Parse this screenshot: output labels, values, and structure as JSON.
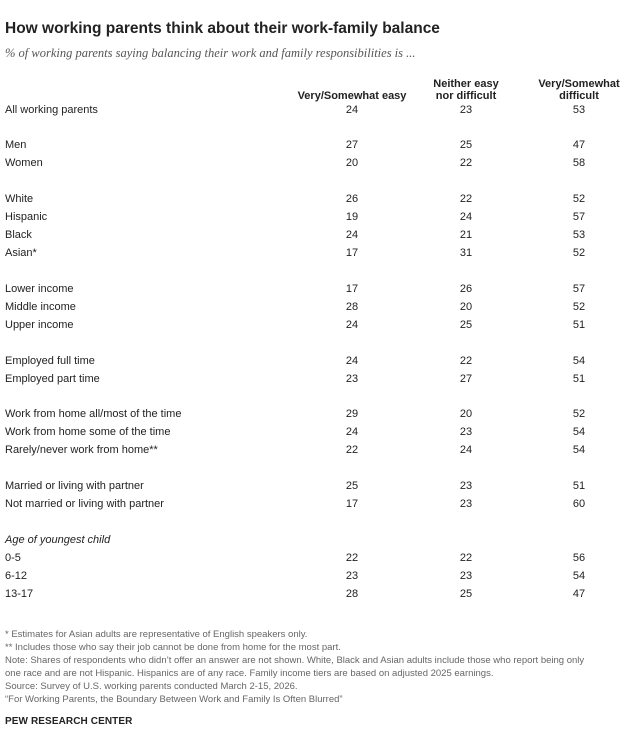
{
  "title": "How working parents think about their work-family balance",
  "subtitle": "% of working parents saying balancing their work and family responsibilities is ...",
  "chart_data": {
    "type": "table",
    "columns": [
      "Very/Somewhat easy",
      "Neither easy nor difficult",
      "Very/Somewhat difficult"
    ],
    "column_lines": [
      [
        "Very/Somewhat easy"
      ],
      [
        "Neither easy",
        "nor difficult"
      ],
      [
        "Very/Somewhat",
        "difficult"
      ]
    ],
    "rows": [
      {
        "label": "All working parents",
        "values": [
          24,
          23,
          53
        ]
      },
      {
        "label": "Men",
        "values": [
          27,
          25,
          47
        ]
      },
      {
        "label": "Women",
        "values": [
          20,
          22,
          58
        ]
      },
      {
        "label": "White",
        "values": [
          26,
          22,
          52
        ]
      },
      {
        "label": "Hispanic",
        "values": [
          19,
          24,
          57
        ]
      },
      {
        "label": "Black",
        "values": [
          24,
          21,
          53
        ]
      },
      {
        "label": "Asian*",
        "values": [
          17,
          31,
          52
        ]
      },
      {
        "label": "Lower income",
        "values": [
          17,
          26,
          57
        ]
      },
      {
        "label": "Middle income",
        "values": [
          28,
          20,
          52
        ]
      },
      {
        "label": "Upper income",
        "values": [
          24,
          25,
          51
        ]
      },
      {
        "label": "Employed full time",
        "values": [
          24,
          22,
          54
        ]
      },
      {
        "label": "Employed part time",
        "values": [
          23,
          27,
          51
        ]
      },
      {
        "label": "Work from home all/most of the time",
        "values": [
          29,
          20,
          52
        ]
      },
      {
        "label": "Work from home some of the time",
        "values": [
          24,
          23,
          54
        ]
      },
      {
        "label": "Rarely/never work from home**",
        "values": [
          22,
          24,
          54
        ]
      },
      {
        "label": "Married or living with partner",
        "values": [
          25,
          23,
          51
        ]
      },
      {
        "label": "Not married or living with partner",
        "values": [
          17,
          23,
          60
        ]
      },
      {
        "label": "0-5",
        "values": [
          22,
          22,
          56
        ]
      },
      {
        "label": "6-12",
        "values": [
          23,
          23,
          54
        ]
      },
      {
        "label": "13-17",
        "values": [
          28,
          25,
          47
        ]
      }
    ],
    "group_labels": [
      "Age of youngest child"
    ]
  },
  "notes": [
    "* Estimates for Asian adults are representative of English speakers only.",
    "** Includes those who say their job cannot be done from home for the most part.",
    "Note: Shares of respondents who didn’t offer an answer are not shown. White, Black and Asian adults include those who report being only",
    "one race and are not Hispanic. Hispanics are of any race. Family income tiers are based on adjusted 2025 earnings.",
    "Source: Survey of U.S. working parents conducted March 2-15, 2026.",
    "“For Working Parents, the Boundary Between Work and Family Is Often Blurred”"
  ],
  "brand": "PEW RESEARCH CENTER"
}
